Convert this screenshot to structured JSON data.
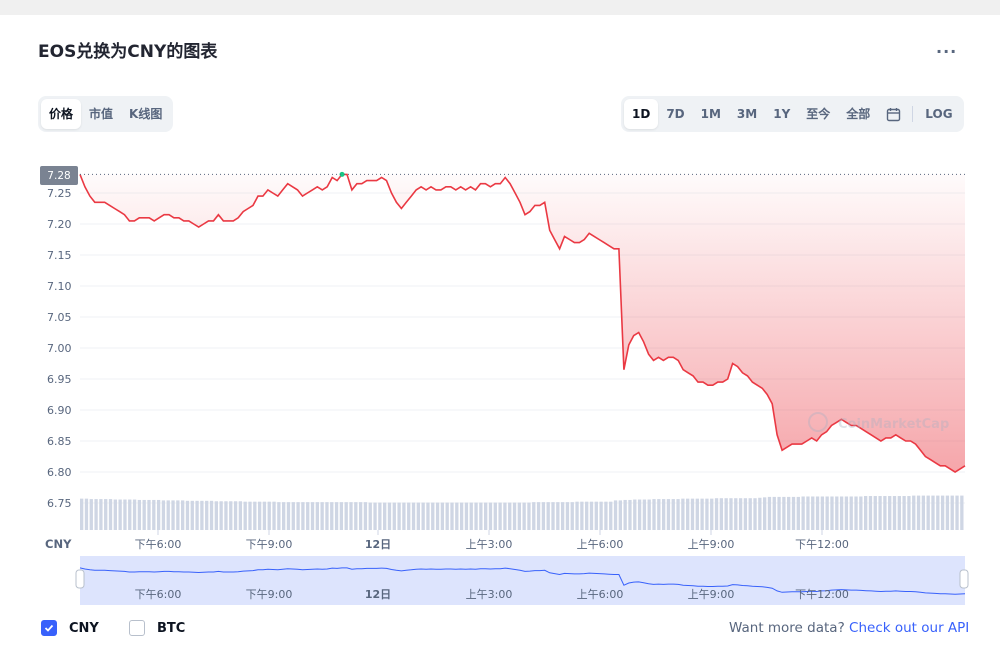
{
  "title": "EOS兑换为CNY的图表",
  "more_label": "...",
  "view_tabs": [
    {
      "label": "价格",
      "active": true
    },
    {
      "label": "市值",
      "active": false
    },
    {
      "label": "K线图",
      "active": false
    }
  ],
  "range_tabs": [
    {
      "label": "1D",
      "active": true
    },
    {
      "label": "7D",
      "active": false
    },
    {
      "label": "1M",
      "active": false
    },
    {
      "label": "3M",
      "active": false
    },
    {
      "label": "1Y",
      "active": false
    },
    {
      "label": "至今",
      "active": false
    },
    {
      "label": "全部",
      "active": false
    }
  ],
  "calendar_icon": "calendar-icon",
  "log_label": "LOG",
  "watermark": "CoinMarketCap",
  "colors": {
    "accent": "#3861fb",
    "line": "#ea3943",
    "up_point": "#16c784",
    "volume": "#cfd6e4",
    "navigator": "#dde4fd"
  },
  "chart_data": {
    "type": "line",
    "currency_label": "CNY",
    "current_price_label": "7.28",
    "y_ticks": [
      "7.25",
      "7.20",
      "7.15",
      "7.10",
      "7.05",
      "7.00",
      "6.95",
      "6.90",
      "6.85",
      "6.80",
      "6.75"
    ],
    "ylim": [
      6.7,
      7.3
    ],
    "x_ticks": [
      "下午6:00",
      "下午9:00",
      "12日",
      "上午3:00",
      "上午6:00",
      "上午9:00",
      "下午12:00"
    ],
    "navigator_x_ticks": [
      "下午6:00",
      "下午9:00",
      "12日",
      "上午3:00",
      "上午6:00",
      "上午9:00",
      "下午12:00"
    ],
    "series": [
      {
        "values": [
          7.28,
          7.26,
          7.245,
          7.235,
          7.235,
          7.235,
          7.23,
          7.225,
          7.22,
          7.215,
          7.205,
          7.205,
          7.21,
          7.21,
          7.21,
          7.205,
          7.21,
          7.215,
          7.215,
          7.21,
          7.21,
          7.205,
          7.205,
          7.2,
          7.195,
          7.2,
          7.205,
          7.205,
          7.215,
          7.205,
          7.205,
          7.205,
          7.21,
          7.22,
          7.225,
          7.23,
          7.245,
          7.245,
          7.255,
          7.25,
          7.245,
          7.255,
          7.265,
          7.26,
          7.255,
          7.245,
          7.25,
          7.255,
          7.26,
          7.255,
          7.26,
          7.275,
          7.27,
          7.28,
          7.28,
          7.255,
          7.265,
          7.265,
          7.27,
          7.27,
          7.27,
          7.275,
          7.27,
          7.25,
          7.235,
          7.225,
          7.235,
          7.245,
          7.255,
          7.26,
          7.255,
          7.26,
          7.255,
          7.255,
          7.26,
          7.26,
          7.255,
          7.26,
          7.255,
          7.26,
          7.255,
          7.265,
          7.265,
          7.26,
          7.265,
          7.265,
          7.275,
          7.265,
          7.25,
          7.235,
          7.215,
          7.22,
          7.23,
          7.23,
          7.235,
          7.19,
          7.175,
          7.16,
          7.18,
          7.175,
          7.17,
          7.17,
          7.175,
          7.185,
          7.18,
          7.175,
          7.17,
          7.165,
          7.16,
          7.16,
          6.965,
          7.005,
          7.02,
          7.025,
          7.01,
          6.99,
          6.98,
          6.985,
          6.98,
          6.985,
          6.985,
          6.98,
          6.965,
          6.96,
          6.955,
          6.945,
          6.945,
          6.94,
          6.94,
          6.945,
          6.945,
          6.95,
          6.975,
          6.97,
          6.96,
          6.955,
          6.945,
          6.94,
          6.935,
          6.925,
          6.91,
          6.86,
          6.835,
          6.84,
          6.845,
          6.845,
          6.845,
          6.85,
          6.855,
          6.85,
          6.86,
          6.865,
          6.875,
          6.88,
          6.885,
          6.88,
          6.875,
          6.875,
          6.87,
          6.865,
          6.86,
          6.855,
          6.85,
          6.855,
          6.855,
          6.86,
          6.855,
          6.85,
          6.85,
          6.845,
          6.835,
          6.825,
          6.82,
          6.815,
          6.81,
          6.81,
          6.805,
          6.8,
          6.805,
          6.81
        ]
      }
    ],
    "volume_relative": [
      0.72,
      0.72,
      0.71,
      0.71,
      0.71,
      0.71,
      0.71,
      0.7,
      0.7,
      0.7,
      0.7,
      0.7,
      0.69,
      0.69,
      0.69,
      0.69,
      0.69,
      0.68,
      0.68,
      0.68,
      0.68,
      0.68,
      0.67,
      0.67,
      0.67,
      0.67,
      0.67,
      0.67,
      0.66,
      0.66,
      0.66,
      0.66,
      0.66,
      0.66,
      0.65,
      0.65,
      0.65,
      0.65,
      0.65,
      0.65,
      0.65,
      0.64,
      0.64,
      0.64,
      0.64,
      0.64,
      0.64,
      0.64,
      0.64,
      0.64,
      0.64,
      0.64,
      0.64,
      0.64,
      0.64,
      0.64,
      0.64,
      0.64,
      0.64,
      0.64,
      0.63,
      0.63,
      0.63,
      0.63,
      0.63,
      0.63,
      0.63,
      0.63,
      0.63,
      0.63,
      0.63,
      0.63,
      0.63,
      0.63,
      0.63,
      0.63,
      0.63,
      0.63,
      0.63,
      0.63,
      0.63,
      0.63,
      0.63,
      0.63,
      0.63,
      0.63,
      0.63,
      0.63,
      0.63,
      0.63,
      0.63,
      0.63,
      0.63,
      0.63,
      0.64,
      0.64,
      0.64,
      0.64,
      0.64,
      0.64,
      0.64,
      0.64,
      0.64,
      0.65,
      0.65,
      0.65,
      0.65,
      0.65,
      0.65,
      0.65,
      0.65,
      0.68,
      0.68,
      0.69,
      0.69,
      0.7,
      0.7,
      0.7,
      0.7,
      0.71,
      0.71,
      0.71,
      0.71,
      0.71,
      0.71,
      0.72,
      0.72,
      0.72,
      0.72,
      0.72,
      0.72,
      0.72,
      0.73,
      0.73,
      0.73,
      0.73,
      0.73,
      0.73,
      0.73,
      0.73,
      0.73,
      0.74,
      0.75,
      0.76,
      0.76,
      0.76,
      0.76,
      0.76,
      0.76,
      0.76,
      0.77,
      0.77,
      0.77,
      0.77,
      0.77,
      0.77,
      0.77,
      0.77,
      0.77,
      0.77,
      0.77,
      0.77,
      0.77,
      0.78,
      0.78,
      0.78,
      0.78,
      0.78,
      0.78,
      0.78,
      0.78,
      0.78,
      0.78,
      0.79,
      0.79,
      0.79,
      0.79,
      0.79,
      0.79,
      0.79,
      0.79,
      0.79,
      0.79,
      0.79
    ],
    "grid": true,
    "legend": "bottom-left"
  },
  "footer": {
    "cny_label": "CNY",
    "cny_checked": true,
    "btc_label": "BTC",
    "btc_checked": false,
    "api_text": "Want more data?",
    "api_link": "Check out our API"
  }
}
